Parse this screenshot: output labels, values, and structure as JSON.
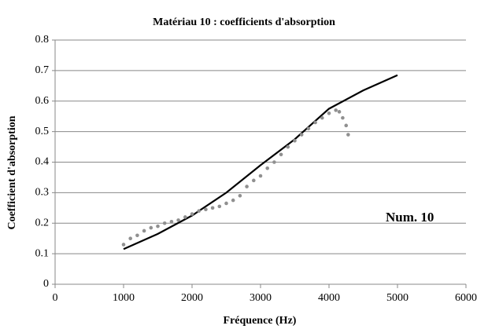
{
  "chart_data": {
    "type": "line",
    "title": "Matériau 10 : coefficients d'absorption",
    "x_label": "Fréquence (Hz)",
    "y_label": "Coefficient d'absorption",
    "annotation": "Num. 10",
    "xlim": [
      0,
      6000
    ],
    "xticks": [
      0,
      1000,
      2000,
      3000,
      4000,
      5000,
      6000
    ],
    "ylim": [
      0,
      0.8
    ],
    "yticks": [
      0,
      0.1,
      0.2,
      0.3,
      0.4,
      0.5,
      0.6,
      0.7,
      0.8
    ],
    "grid": true,
    "series": [
      {
        "color": "#000000",
        "mode": "line",
        "x": [
          1000,
          1500,
          2000,
          2500,
          3000,
          3500,
          4000,
          4500,
          5000
        ],
        "values": [
          0.115,
          0.165,
          0.225,
          0.3,
          0.39,
          0.475,
          0.575,
          0.635,
          0.685
        ]
      },
      {
        "color": "#909090",
        "mode": "markers",
        "x": [
          1000,
          1100,
          1200,
          1300,
          1400,
          1500,
          1600,
          1700,
          1800,
          1900,
          2000,
          2100,
          2200,
          2300,
          2400,
          2500,
          2600,
          2700,
          2800,
          2900,
          3000,
          3100,
          3200,
          3300,
          3400,
          3500,
          3600,
          3700,
          3800,
          3900,
          4000,
          4100,
          4150,
          4200,
          4250,
          4280
        ],
        "values": [
          0.13,
          0.15,
          0.16,
          0.175,
          0.185,
          0.19,
          0.2,
          0.205,
          0.21,
          0.22,
          0.23,
          0.24,
          0.245,
          0.25,
          0.255,
          0.265,
          0.275,
          0.29,
          0.32,
          0.34,
          0.355,
          0.38,
          0.4,
          0.425,
          0.45,
          0.47,
          0.49,
          0.51,
          0.53,
          0.545,
          0.56,
          0.57,
          0.565,
          0.545,
          0.52,
          0.49
        ]
      }
    ]
  }
}
